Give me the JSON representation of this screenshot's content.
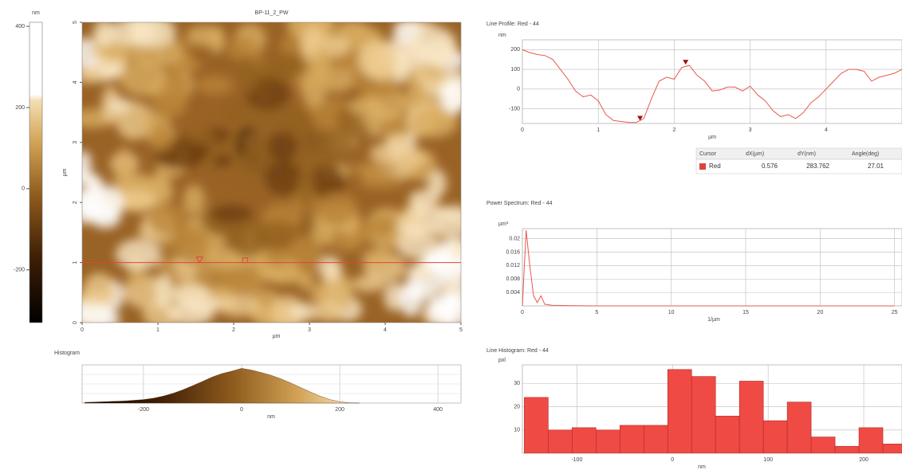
{
  "chart_data": [
    {
      "type": "heatmap",
      "title": "BP-11_2_PW",
      "x_label": "µm",
      "y_label": "µm",
      "xlim": [
        0,
        5
      ],
      "ylim": [
        0,
        5
      ],
      "xticks": [
        0,
        1,
        2,
        3,
        4,
        5
      ],
      "yticks": [
        0,
        1,
        2,
        3,
        4,
        5
      ],
      "profile_y": 1,
      "profile_color": "#e0463a",
      "cursors_x": [
        1.55,
        2.15
      ],
      "colorbar": {
        "label": "nm",
        "lim": [
          -330,
          410
        ],
        "ticks": [
          -200,
          0,
          200,
          400
        ]
      }
    },
    {
      "type": "area",
      "title": "Histogram",
      "x_label": "nm",
      "x": [
        -320,
        -300,
        -280,
        -260,
        -240,
        -220,
        -200,
        -180,
        -160,
        -140,
        -120,
        -100,
        -80,
        -60,
        -40,
        -20,
        0,
        20,
        40,
        60,
        80,
        100,
        120,
        140,
        160,
        180,
        200,
        220,
        240
      ],
      "values": [
        2,
        3,
        4,
        5,
        6,
        8,
        10,
        14,
        20,
        28,
        38,
        50,
        62,
        75,
        85,
        92,
        100,
        95,
        88,
        80,
        70,
        58,
        45,
        32,
        20,
        10,
        4,
        1,
        0
      ],
      "xlim": [
        -325,
        447
      ],
      "ylim": [
        0,
        110
      ],
      "xticks": [
        -200,
        0,
        200,
        400
      ]
    },
    {
      "type": "line",
      "title": "Line Profile: Red - 44",
      "y_label": "nm",
      "x_label": "µm",
      "color": "#e8584e",
      "x": [
        0,
        0.1,
        0.2,
        0.3,
        0.4,
        0.5,
        0.6,
        0.7,
        0.8,
        0.9,
        1,
        1.1,
        1.2,
        1.3,
        1.4,
        1.5,
        1.6,
        1.7,
        1.8,
        1.9,
        2,
        2.1,
        2.2,
        2.3,
        2.4,
        2.5,
        2.6,
        2.7,
        2.8,
        2.9,
        3,
        3.1,
        3.2,
        3.3,
        3.4,
        3.5,
        3.6,
        3.7,
        3.8,
        3.9,
        4,
        4.1,
        4.2,
        4.3,
        4.4,
        4.5,
        4.6,
        4.7,
        4.8,
        4.9,
        5
      ],
      "values": [
        200,
        185,
        175,
        170,
        150,
        100,
        50,
        -10,
        -40,
        -30,
        -60,
        -130,
        -160,
        -165,
        -170,
        -170,
        -150,
        -50,
        40,
        60,
        50,
        110,
        120,
        70,
        40,
        -10,
        -5,
        10,
        10,
        -10,
        15,
        -30,
        -60,
        -110,
        -140,
        -130,
        -150,
        -120,
        -70,
        -40,
        0,
        40,
        80,
        100,
        100,
        90,
        40,
        60,
        70,
        80,
        100
      ],
      "xlim": [
        0,
        5
      ],
      "ylim": [
        -175,
        250
      ],
      "xticks": [
        0,
        1,
        2,
        3,
        4
      ],
      "yticks": [
        -100,
        0,
        100,
        200
      ],
      "cursors": {
        "x": [
          1.55,
          2.15
        ],
        "y": [
          -165,
          120
        ],
        "color": "#a01010"
      }
    },
    {
      "type": "line",
      "title": "Power Spectrum: Red - 44",
      "y_label": "µm³",
      "x_label": "1/µm",
      "color": "#e8584e",
      "x": [
        0,
        0.25,
        0.5,
        0.75,
        1,
        1.25,
        1.5,
        2,
        3,
        5,
        10,
        15,
        20,
        25
      ],
      "values": [
        0,
        0.0225,
        0.012,
        0.003,
        0.001,
        0.003,
        0.0005,
        0.0002,
        0.0001,
        0,
        0,
        0,
        0,
        0
      ],
      "xlim": [
        0,
        25.5
      ],
      "ylim": [
        0,
        0.023
      ],
      "xticks": [
        0,
        5,
        10,
        15,
        20,
        25
      ],
      "yticks": [
        0.004,
        0.008,
        0.012,
        0.016,
        0.02
      ]
    },
    {
      "type": "histogram",
      "title": "Line Histogram: Red - 44",
      "y_label": "pxl",
      "x_label": "nm",
      "color": "#f04a44",
      "bins": [
        -155,
        -130,
        -105,
        -80,
        -55,
        -30,
        -5,
        20,
        45,
        70,
        95,
        120,
        145,
        170,
        195,
        220,
        245
      ],
      "values": [
        24,
        10,
        11,
        10,
        12,
        12,
        36,
        33,
        16,
        31,
        14,
        22,
        7,
        3,
        11,
        4
      ],
      "xlim": [
        -157,
        240
      ],
      "ylim": [
        0,
        38
      ],
      "xticks": [
        -100,
        0,
        100,
        200
      ],
      "yticks": [
        10,
        20,
        30
      ]
    }
  ],
  "cursor_table": {
    "header": [
      "Cursor",
      "dX(µm)",
      "dY(nm)",
      "Angle(deg)"
    ],
    "rows": [
      [
        "Red",
        "0.576",
        "283.762",
        "27.01"
      ]
    ]
  }
}
